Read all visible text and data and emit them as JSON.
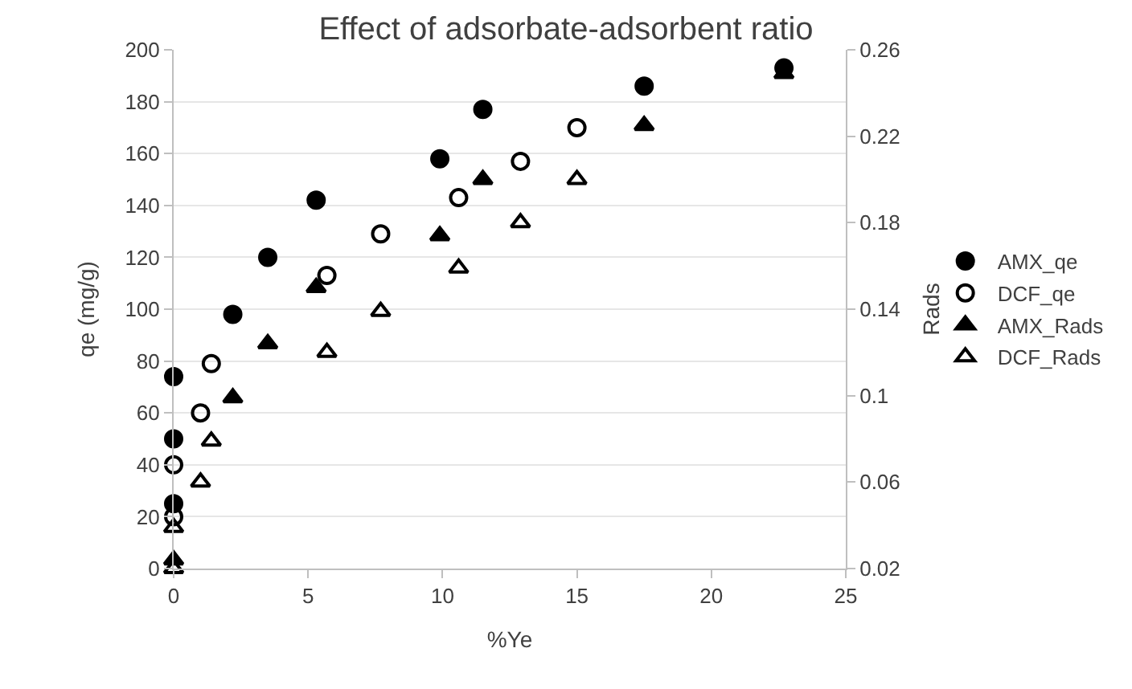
{
  "chart_data": {
    "type": "scatter",
    "title": "Effect of adsorbate-adsorbent ratio",
    "xlabel": "%Ye",
    "ylabel": "qe (mg/g)",
    "y2label": "Rads",
    "xlim": [
      0,
      25
    ],
    "xticks": [
      0,
      5,
      10,
      15,
      20,
      25
    ],
    "ylim": [
      0,
      200
    ],
    "yticks": [
      0,
      20,
      40,
      60,
      80,
      100,
      120,
      140,
      160,
      180,
      200
    ],
    "y2lim": [
      0.02,
      0.26
    ],
    "y2ticks": [
      0.02,
      0.06,
      0.1,
      0.14,
      0.18,
      0.22,
      0.26
    ],
    "grid": "y",
    "legend": "right",
    "series": [
      {
        "name": "AMX_qe",
        "color": "#000000",
        "marker": "circle",
        "x": [
          0,
          0,
          0,
          2.2,
          3.5,
          5.3,
          9.9,
          11.5,
          17.5,
          22.7
        ],
        "values": [
          74,
          50,
          25,
          98,
          120,
          142,
          158,
          177,
          186,
          193
        ]
      },
      {
        "name": "DCF_qe",
        "color": "#000000",
        "marker": "circle-open",
        "x": [
          0,
          0,
          1.0,
          1.4,
          5.7,
          7.7,
          10.6,
          12.9,
          15.0
        ],
        "values": [
          40,
          20,
          60,
          79,
          113,
          129,
          143,
          157,
          170
        ]
      },
      {
        "name": "AMX_Rads",
        "color": "#000000",
        "marker": "triangle",
        "axis": "y2",
        "x": [
          0,
          2.2,
          3.5,
          5.3,
          9.9,
          11.5,
          17.5,
          22.7
        ],
        "values": [
          0.024,
          0.099,
          0.124,
          0.15,
          0.174,
          0.2,
          0.225,
          0.249
        ]
      },
      {
        "name": "DCF_Rads",
        "color": "#000000",
        "marker": "triangle-open",
        "axis": "y2",
        "x": [
          0,
          0,
          1.0,
          1.4,
          5.7,
          7.7,
          10.6,
          12.9,
          15.0
        ],
        "values": [
          0.02,
          0.039,
          0.06,
          0.079,
          0.12,
          0.139,
          0.159,
          0.18,
          0.2
        ]
      }
    ]
  }
}
